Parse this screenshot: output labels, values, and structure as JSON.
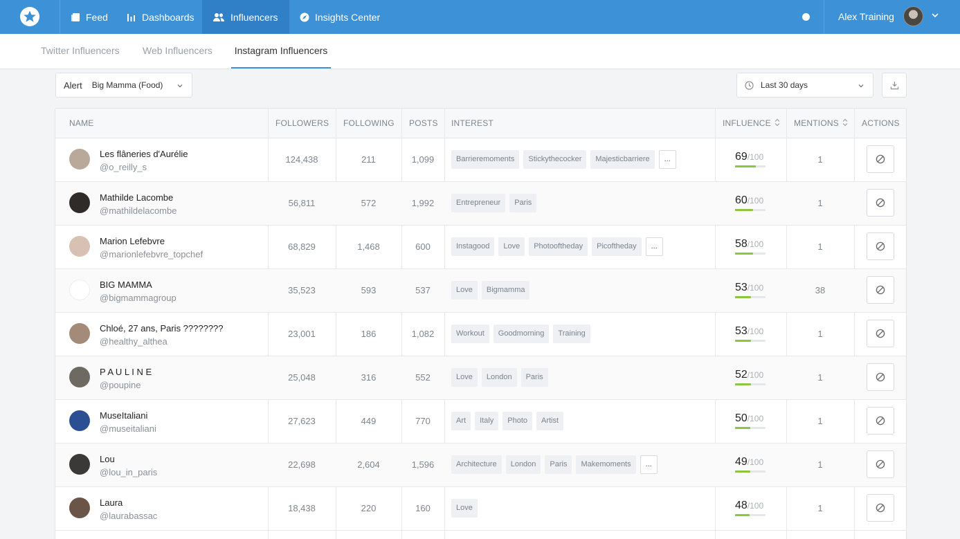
{
  "nav": {
    "items": [
      {
        "label": "Feed",
        "icon": "feed-icon"
      },
      {
        "label": "Dashboards",
        "icon": "bar-chart-icon"
      },
      {
        "label": "Influencers",
        "icon": "users-icon"
      },
      {
        "label": "Insights Center",
        "icon": "compass-icon"
      }
    ],
    "active": "Influencers",
    "user_name": "Alex Training"
  },
  "subtabs": [
    "Twitter Influencers",
    "Web Influencers",
    "Instagram Influencers"
  ],
  "filters": {
    "alert_label": "Alert",
    "alert_value": "Big Mamma (Food)",
    "date_range": "Last 30 days"
  },
  "table": {
    "headers": {
      "name": "NAME",
      "followers": "FOLLOWERS",
      "following": "FOLLOWING",
      "posts": "POSTS",
      "interest": "INTEREST",
      "influence": "INFLUENCE",
      "mentions": "MENTIONS",
      "actions": "ACTIONS"
    },
    "influence_max": "/100",
    "more_label": "...",
    "rows": [
      {
        "name": "Les flâneries d'Aurélie",
        "handle": "@o_reilly_s",
        "followers": "124,438",
        "following": "211",
        "posts": "1,099",
        "tags": [
          "Barrieremoments",
          "Stickythecocker",
          "Majesticbarriere"
        ],
        "more": true,
        "influence": "69",
        "mentions": "1",
        "avatar_color": "#b9a99a"
      },
      {
        "name": "Mathilde Lacombe",
        "handle": "@mathildelacombe",
        "followers": "56,811",
        "following": "572",
        "posts": "1,992",
        "tags": [
          "Entrepreneur",
          "Paris"
        ],
        "more": false,
        "influence": "60",
        "mentions": "1",
        "avatar_color": "#2f2b29"
      },
      {
        "name": "Marion Lefebvre",
        "handle": "@marionlefebvre_topchef",
        "followers": "68,829",
        "following": "1,468",
        "posts": "600",
        "tags": [
          "Instagood",
          "Love",
          "Photooftheday",
          "Picoftheday"
        ],
        "more": true,
        "influence": "58",
        "mentions": "1",
        "avatar_color": "#d8c1b3"
      },
      {
        "name": "BIG MAMMA",
        "handle": "@bigmammagroup",
        "followers": "35,523",
        "following": "593",
        "posts": "537",
        "tags": [
          "Love",
          "Bigmamma"
        ],
        "more": false,
        "influence": "53",
        "mentions": "38",
        "avatar_color": "#ffffff"
      },
      {
        "name": "Chloé, 27 ans, Paris ????????",
        "handle": "@healthy_althea",
        "followers": "23,001",
        "following": "186",
        "posts": "1,082",
        "tags": [
          "Workout",
          "Goodmorning",
          "Training"
        ],
        "more": false,
        "influence": "53",
        "mentions": "1",
        "avatar_color": "#a48a78"
      },
      {
        "name": "P A U L I N E",
        "handle": "@poupine",
        "followers": "25,048",
        "following": "316",
        "posts": "552",
        "tags": [
          "Love",
          "London",
          "Paris"
        ],
        "more": false,
        "influence": "52",
        "mentions": "1",
        "avatar_color": "#6e6a62"
      },
      {
        "name": "MuseItaliani",
        "handle": "@museitaliani",
        "followers": "27,623",
        "following": "449",
        "posts": "770",
        "tags": [
          "Art",
          "Italy",
          "Photo",
          "Artist"
        ],
        "more": false,
        "influence": "50",
        "mentions": "1",
        "avatar_color": "#2c4f94"
      },
      {
        "name": "Lou",
        "handle": "@lou_in_paris",
        "followers": "22,698",
        "following": "2,604",
        "posts": "1,596",
        "tags": [
          "Architecture",
          "London",
          "Paris",
          "Makemoments"
        ],
        "more": true,
        "influence": "49",
        "mentions": "1",
        "avatar_color": "#3b3938"
      },
      {
        "name": "Laura",
        "handle": "@laurabassac",
        "followers": "18,438",
        "following": "220",
        "posts": "160",
        "tags": [
          "Love"
        ],
        "more": false,
        "influence": "48",
        "mentions": "1",
        "avatar_color": "#6b5548"
      }
    ]
  },
  "colors": {
    "nav_bg": "#3d91d6",
    "nav_active": "#2f80c7",
    "influence_bar": "#8cc63f"
  }
}
